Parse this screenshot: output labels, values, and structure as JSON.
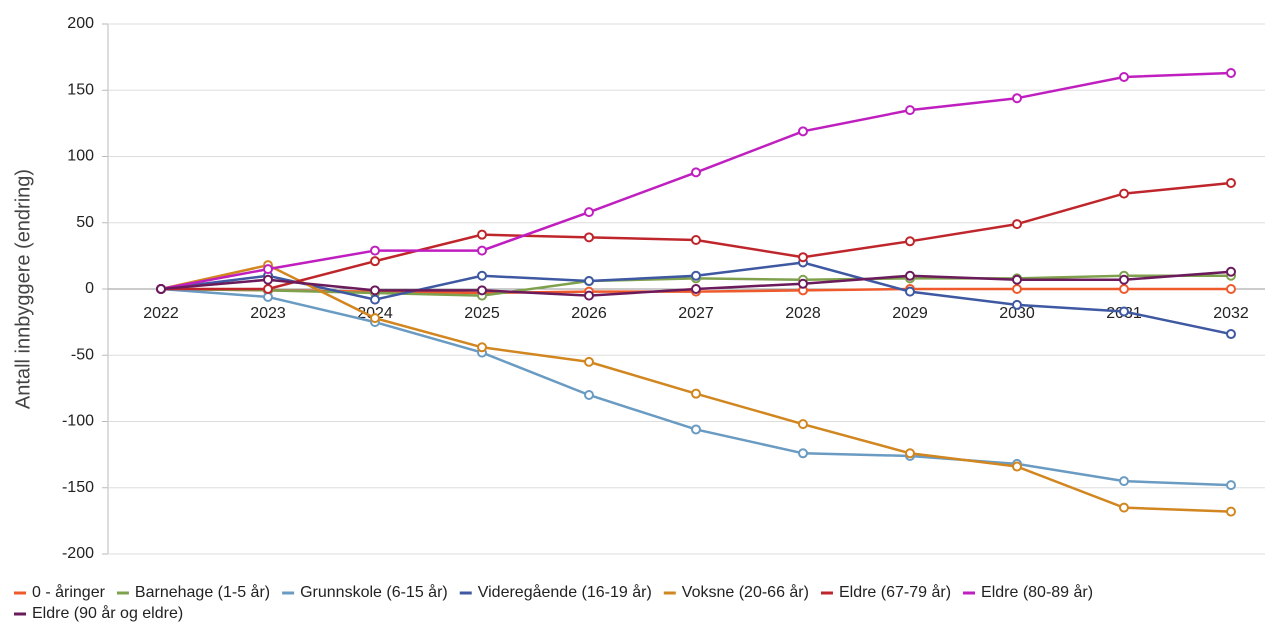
{
  "chart_data": {
    "type": "line",
    "y_label": "Antall innbyggere (endring)",
    "categories": [
      "2022",
      "2023",
      "2024",
      "2025",
      "2026",
      "2027",
      "2028",
      "2029",
      "2030",
      "2031",
      "2032"
    ],
    "ylim": [
      -200,
      200
    ],
    "yticks": [
      -200,
      -150,
      -100,
      -50,
      0,
      50,
      100,
      150,
      200
    ],
    "grid": true,
    "legend": "bottom",
    "series": [
      {
        "name": "0 - åringer",
        "color": "#ee5a2c",
        "values": [
          0,
          -1,
          -2,
          -3,
          -2,
          -2,
          -1,
          0,
          0,
          0,
          0
        ]
      },
      {
        "name": "Barnehage (1-5 år)",
        "color": "#7fa04c",
        "values": [
          0,
          -1,
          -3,
          -5,
          6,
          8,
          7,
          8,
          8,
          10,
          10
        ]
      },
      {
        "name": "Grunnskole (6-15 år)",
        "color": "#6a9bc2",
        "values": [
          0,
          -6,
          -25,
          -48,
          -80,
          -106,
          -124,
          -126,
          -132,
          -145,
          -148
        ]
      },
      {
        "name": "Videregående (16-19 år)",
        "color": "#3e58a2",
        "values": [
          0,
          10,
          -8,
          10,
          6,
          10,
          20,
          -2,
          -12,
          -17,
          -34
        ]
      },
      {
        "name": "Voksne (20-66 år)",
        "color": "#d2861f",
        "values": [
          0,
          18,
          -22,
          -44,
          -55,
          -79,
          -102,
          -124,
          -134,
          -165,
          -168
        ]
      },
      {
        "name": "Eldre (67-79 år)",
        "color": "#bf262c",
        "values": [
          0,
          0,
          21,
          41,
          39,
          37,
          24,
          36,
          49,
          72,
          80
        ]
      },
      {
        "name": "Eldre (80-89 år)",
        "color": "#c01fc0",
        "values": [
          0,
          15,
          29,
          29,
          58,
          88,
          119,
          135,
          144,
          160,
          163
        ]
      },
      {
        "name": "Eldre (90 år og eldre)",
        "color": "#6b1a5c",
        "values": [
          0,
          7,
          -1,
          -1,
          -5,
          0,
          4,
          10,
          7,
          7,
          13
        ]
      }
    ]
  }
}
